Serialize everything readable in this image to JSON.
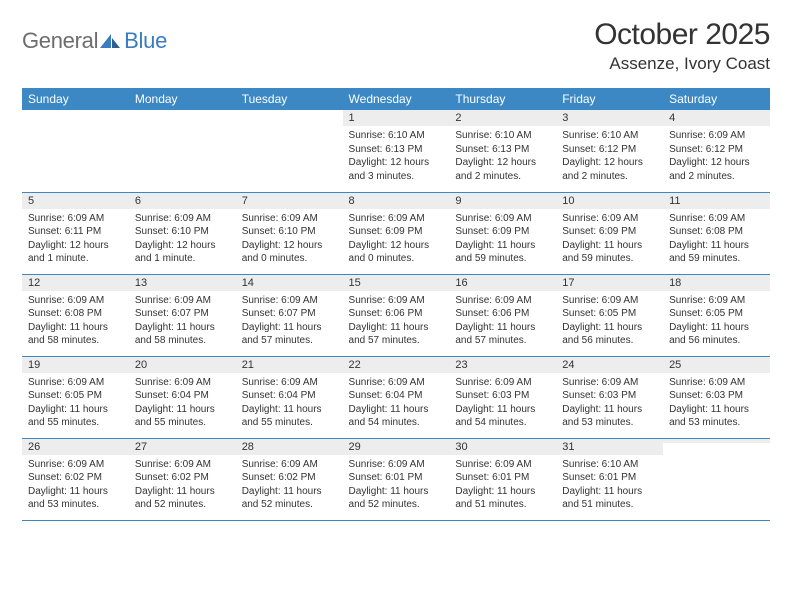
{
  "brand": {
    "part1": "General",
    "part2": "Blue"
  },
  "title": "October 2025",
  "location": "Assenze, Ivory Coast",
  "colors": {
    "header_bg": "#3b88c4",
    "header_text": "#ffffff",
    "daynum_bg": "#ededed",
    "border": "#3b88c4",
    "logo_gray": "#6d6d6d",
    "logo_blue": "#3a7cbf",
    "body_text": "#333333"
  },
  "weekdays": [
    "Sunday",
    "Monday",
    "Tuesday",
    "Wednesday",
    "Thursday",
    "Friday",
    "Saturday"
  ],
  "weeks": [
    [
      {
        "n": "",
        "sr": "",
        "ss": "",
        "dl": ""
      },
      {
        "n": "",
        "sr": "",
        "ss": "",
        "dl": ""
      },
      {
        "n": "",
        "sr": "",
        "ss": "",
        "dl": ""
      },
      {
        "n": "1",
        "sr": "Sunrise: 6:10 AM",
        "ss": "Sunset: 6:13 PM",
        "dl": "Daylight: 12 hours and 3 minutes."
      },
      {
        "n": "2",
        "sr": "Sunrise: 6:10 AM",
        "ss": "Sunset: 6:13 PM",
        "dl": "Daylight: 12 hours and 2 minutes."
      },
      {
        "n": "3",
        "sr": "Sunrise: 6:10 AM",
        "ss": "Sunset: 6:12 PM",
        "dl": "Daylight: 12 hours and 2 minutes."
      },
      {
        "n": "4",
        "sr": "Sunrise: 6:09 AM",
        "ss": "Sunset: 6:12 PM",
        "dl": "Daylight: 12 hours and 2 minutes."
      }
    ],
    [
      {
        "n": "5",
        "sr": "Sunrise: 6:09 AM",
        "ss": "Sunset: 6:11 PM",
        "dl": "Daylight: 12 hours and 1 minute."
      },
      {
        "n": "6",
        "sr": "Sunrise: 6:09 AM",
        "ss": "Sunset: 6:10 PM",
        "dl": "Daylight: 12 hours and 1 minute."
      },
      {
        "n": "7",
        "sr": "Sunrise: 6:09 AM",
        "ss": "Sunset: 6:10 PM",
        "dl": "Daylight: 12 hours and 0 minutes."
      },
      {
        "n": "8",
        "sr": "Sunrise: 6:09 AM",
        "ss": "Sunset: 6:09 PM",
        "dl": "Daylight: 12 hours and 0 minutes."
      },
      {
        "n": "9",
        "sr": "Sunrise: 6:09 AM",
        "ss": "Sunset: 6:09 PM",
        "dl": "Daylight: 11 hours and 59 minutes."
      },
      {
        "n": "10",
        "sr": "Sunrise: 6:09 AM",
        "ss": "Sunset: 6:09 PM",
        "dl": "Daylight: 11 hours and 59 minutes."
      },
      {
        "n": "11",
        "sr": "Sunrise: 6:09 AM",
        "ss": "Sunset: 6:08 PM",
        "dl": "Daylight: 11 hours and 59 minutes."
      }
    ],
    [
      {
        "n": "12",
        "sr": "Sunrise: 6:09 AM",
        "ss": "Sunset: 6:08 PM",
        "dl": "Daylight: 11 hours and 58 minutes."
      },
      {
        "n": "13",
        "sr": "Sunrise: 6:09 AM",
        "ss": "Sunset: 6:07 PM",
        "dl": "Daylight: 11 hours and 58 minutes."
      },
      {
        "n": "14",
        "sr": "Sunrise: 6:09 AM",
        "ss": "Sunset: 6:07 PM",
        "dl": "Daylight: 11 hours and 57 minutes."
      },
      {
        "n": "15",
        "sr": "Sunrise: 6:09 AM",
        "ss": "Sunset: 6:06 PM",
        "dl": "Daylight: 11 hours and 57 minutes."
      },
      {
        "n": "16",
        "sr": "Sunrise: 6:09 AM",
        "ss": "Sunset: 6:06 PM",
        "dl": "Daylight: 11 hours and 57 minutes."
      },
      {
        "n": "17",
        "sr": "Sunrise: 6:09 AM",
        "ss": "Sunset: 6:05 PM",
        "dl": "Daylight: 11 hours and 56 minutes."
      },
      {
        "n": "18",
        "sr": "Sunrise: 6:09 AM",
        "ss": "Sunset: 6:05 PM",
        "dl": "Daylight: 11 hours and 56 minutes."
      }
    ],
    [
      {
        "n": "19",
        "sr": "Sunrise: 6:09 AM",
        "ss": "Sunset: 6:05 PM",
        "dl": "Daylight: 11 hours and 55 minutes."
      },
      {
        "n": "20",
        "sr": "Sunrise: 6:09 AM",
        "ss": "Sunset: 6:04 PM",
        "dl": "Daylight: 11 hours and 55 minutes."
      },
      {
        "n": "21",
        "sr": "Sunrise: 6:09 AM",
        "ss": "Sunset: 6:04 PM",
        "dl": "Daylight: 11 hours and 55 minutes."
      },
      {
        "n": "22",
        "sr": "Sunrise: 6:09 AM",
        "ss": "Sunset: 6:04 PM",
        "dl": "Daylight: 11 hours and 54 minutes."
      },
      {
        "n": "23",
        "sr": "Sunrise: 6:09 AM",
        "ss": "Sunset: 6:03 PM",
        "dl": "Daylight: 11 hours and 54 minutes."
      },
      {
        "n": "24",
        "sr": "Sunrise: 6:09 AM",
        "ss": "Sunset: 6:03 PM",
        "dl": "Daylight: 11 hours and 53 minutes."
      },
      {
        "n": "25",
        "sr": "Sunrise: 6:09 AM",
        "ss": "Sunset: 6:03 PM",
        "dl": "Daylight: 11 hours and 53 minutes."
      }
    ],
    [
      {
        "n": "26",
        "sr": "Sunrise: 6:09 AM",
        "ss": "Sunset: 6:02 PM",
        "dl": "Daylight: 11 hours and 53 minutes."
      },
      {
        "n": "27",
        "sr": "Sunrise: 6:09 AM",
        "ss": "Sunset: 6:02 PM",
        "dl": "Daylight: 11 hours and 52 minutes."
      },
      {
        "n": "28",
        "sr": "Sunrise: 6:09 AM",
        "ss": "Sunset: 6:02 PM",
        "dl": "Daylight: 11 hours and 52 minutes."
      },
      {
        "n": "29",
        "sr": "Sunrise: 6:09 AM",
        "ss": "Sunset: 6:01 PM",
        "dl": "Daylight: 11 hours and 52 minutes."
      },
      {
        "n": "30",
        "sr": "Sunrise: 6:09 AM",
        "ss": "Sunset: 6:01 PM",
        "dl": "Daylight: 11 hours and 51 minutes."
      },
      {
        "n": "31",
        "sr": "Sunrise: 6:10 AM",
        "ss": "Sunset: 6:01 PM",
        "dl": "Daylight: 11 hours and 51 minutes."
      },
      {
        "n": "",
        "sr": "",
        "ss": "",
        "dl": ""
      }
    ]
  ]
}
